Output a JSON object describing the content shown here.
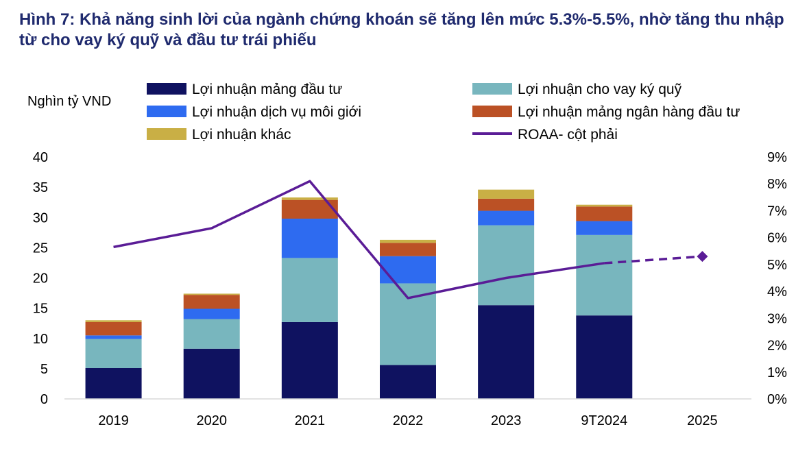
{
  "title": "Hình 7: Khả năng sinh lời của ngành chứng khoán sẽ  tăng lên mức 5.3%-5.5%, nhờ tăng thu nhập từ cho vay ký quỹ và đầu tư trái phiếu",
  "chart_data": {
    "type": "bar",
    "stacked": true,
    "title": "Hình 7: Khả năng sinh lời của ngành chứng khoán sẽ  tăng lên mức 5.3%-5.5%, nhờ tăng thu nhập từ cho vay ký quỹ và đầu tư trái phiếu",
    "ylabel": "Nghìn tỷ VND",
    "categories": [
      "2019",
      "2020",
      "2021",
      "2022",
      "2023",
      "9T2024",
      "2025"
    ],
    "ylim": [
      0,
      40
    ],
    "yticks": [
      "0",
      "5",
      "10",
      "15",
      "20",
      "25",
      "30",
      "35",
      "40"
    ],
    "y2lim": [
      0,
      9
    ],
    "y2ticks": [
      "0%",
      "1%",
      "2%",
      "3%",
      "4%",
      "5%",
      "6%",
      "7%",
      "8%",
      "9%"
    ],
    "grid": false,
    "legend_placement": "top",
    "series": [
      {
        "name": "Lợi nhuận mảng đầu tư",
        "color": "#0f1260",
        "values": [
          5.1,
          8.3,
          12.7,
          5.6,
          15.5,
          13.8,
          null
        ]
      },
      {
        "name": "Lợi nhuận cho vay ký quỹ",
        "color": "#78b6be",
        "values": [
          4.8,
          4.9,
          10.6,
          13.5,
          13.2,
          13.3,
          null
        ]
      },
      {
        "name": "Lợi nhuận dịch vụ môi giới",
        "color": "#2e6bf0",
        "values": [
          0.6,
          1.7,
          6.5,
          4.5,
          2.4,
          2.3,
          null
        ]
      },
      {
        "name": "Lợi nhuận mảng ngân hàng đầu tư",
        "color": "#bb5125",
        "values": [
          2.2,
          2.3,
          3.1,
          2.2,
          2.0,
          2.4,
          null
        ]
      },
      {
        "name": "Lợi nhuận khác",
        "color": "#c9af45",
        "values": [
          0.3,
          0.2,
          0.4,
          0.5,
          1.5,
          0.3,
          null
        ]
      }
    ],
    "line_series": {
      "name": "ROAA- cột phải",
      "axis": "right",
      "color": "#5a1c96",
      "values": [
        5.65,
        6.35,
        8.1,
        3.75,
        4.5,
        5.05,
        5.3
      ],
      "dashed_from_index": 5,
      "marker_index": 6,
      "marker": "diamond"
    }
  }
}
